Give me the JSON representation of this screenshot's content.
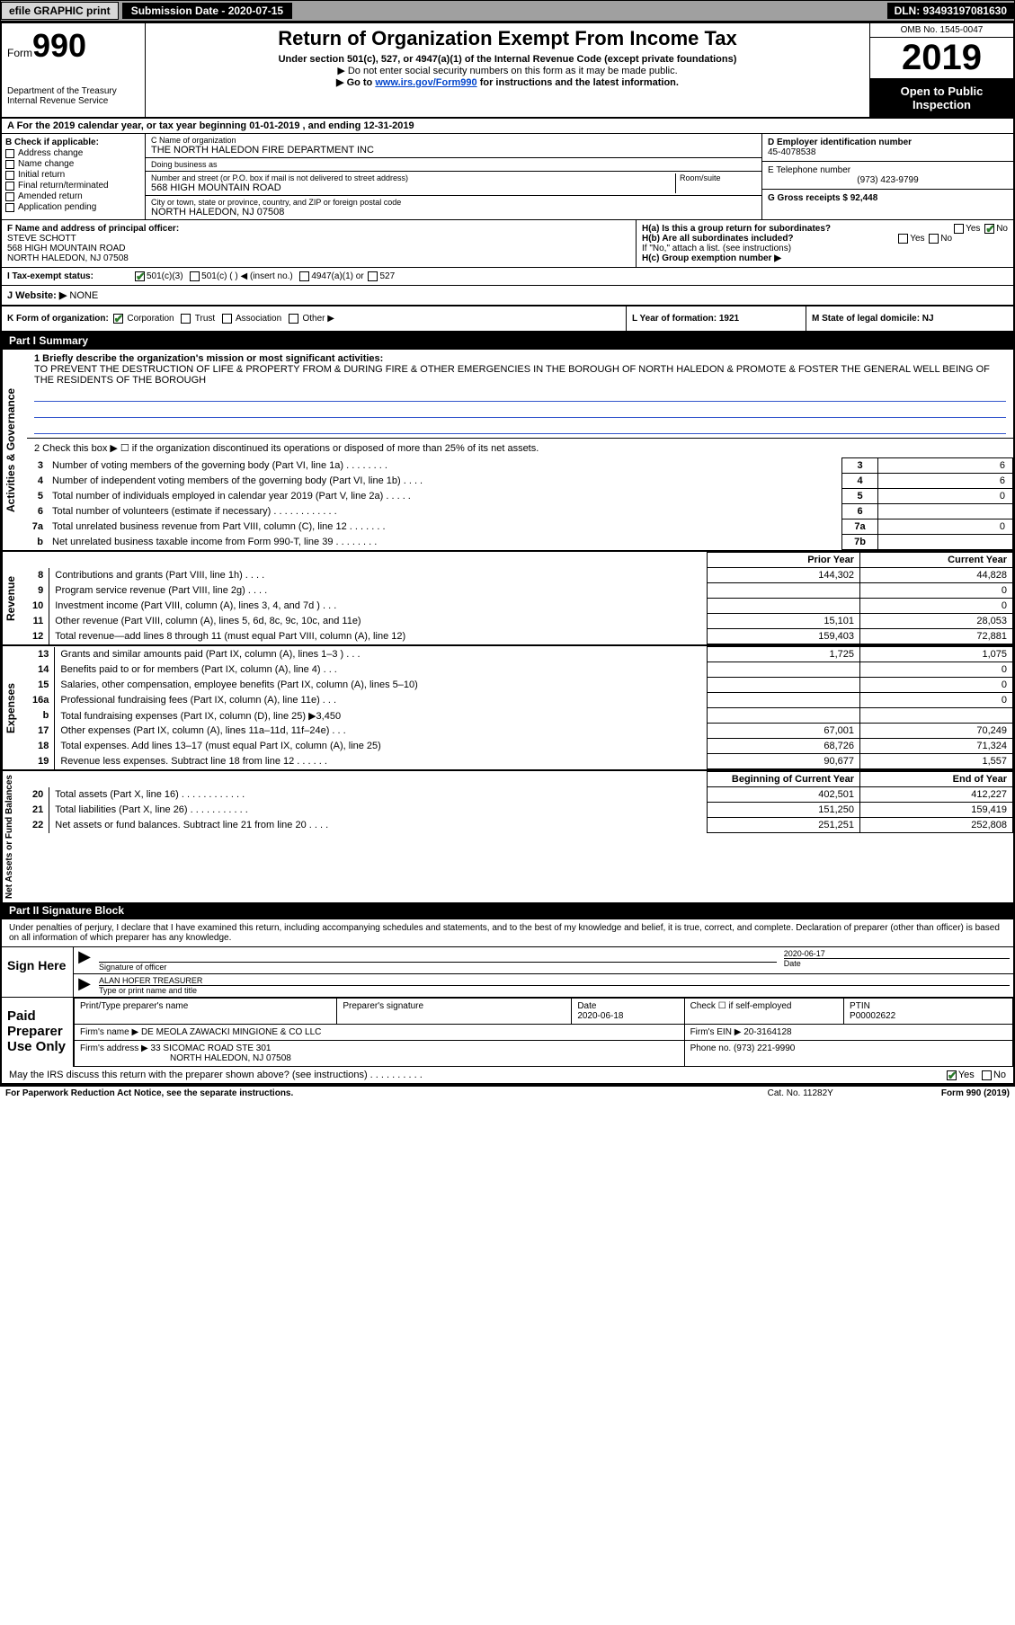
{
  "topbar": {
    "efile": "efile GRAPHIC print",
    "submission_label": "Submission Date - 2020-07-15",
    "dln": "DLN: 93493197081630"
  },
  "header": {
    "form_label": "Form",
    "form_number": "990",
    "dept": "Department of the Treasury\nInternal Revenue Service",
    "title": "Return of Organization Exempt From Income Tax",
    "subtitle": "Under section 501(c), 527, or 4947(a)(1) of the Internal Revenue Code (except private foundations)",
    "note1": "▶ Do not enter social security numbers on this form as it may be made public.",
    "note2_pre": "▶ Go to ",
    "note2_link": "www.irs.gov/Form990",
    "note2_post": " for instructions and the latest information.",
    "omb": "OMB No. 1545-0047",
    "year": "2019",
    "open": "Open to Public Inspection"
  },
  "row_a": "A For the 2019 calendar year, or tax year beginning 01-01-2019   , and ending 12-31-2019",
  "col_b": {
    "label": "B Check if applicable:",
    "items": [
      "Address change",
      "Name change",
      "Initial return",
      "Final return/terminated",
      "Amended return",
      "Application pending"
    ]
  },
  "col_c": {
    "name_label": "C Name of organization",
    "name": "THE NORTH HALEDON FIRE DEPARTMENT INC",
    "dba_label": "Doing business as",
    "dba": "",
    "addr_label": "Number and street (or P.O. box if mail is not delivered to street address)",
    "room_label": "Room/suite",
    "addr": "568 HIGH MOUNTAIN ROAD",
    "city_label": "City or town, state or province, country, and ZIP or foreign postal code",
    "city": "NORTH HALEDON, NJ  07508"
  },
  "col_d": {
    "ein_label": "D Employer identification number",
    "ein": "45-4078538",
    "phone_label": "E Telephone number",
    "phone": "(973) 423-9799",
    "gross_label": "G Gross receipts $ 92,448"
  },
  "row_f": {
    "label": "F  Name and address of principal officer:",
    "name": "STEVE SCHOTT",
    "addr1": "568 HIGH MOUNTAIN ROAD",
    "addr2": "NORTH HALEDON, NJ  07508"
  },
  "row_h": {
    "ha": "H(a)  Is this a group return for subordinates?",
    "hb": "H(b)  Are all subordinates included?",
    "hb_note": "If \"No,\" attach a list. (see instructions)",
    "hc": "H(c)  Group exemption number ▶",
    "yes": "Yes",
    "no": "No"
  },
  "row_i": {
    "label": "I  Tax-exempt status:",
    "opt1": "501(c)(3)",
    "opt2": "501(c) (   ) ◀ (insert no.)",
    "opt3": "4947(a)(1) or",
    "opt4": "527"
  },
  "row_j": {
    "label": "J  Website: ▶",
    "val": "NONE"
  },
  "row_k": {
    "label": "K Form of organization:",
    "opts": [
      "Corporation",
      "Trust",
      "Association",
      "Other ▶"
    ],
    "l_label": "L Year of formation: 1921",
    "m_label": "M State of legal domicile: NJ"
  },
  "part1": {
    "header": "Part I     Summary",
    "vtabs": [
      "Activities & Governance",
      "Revenue",
      "Expenses",
      "Net Assets or Fund Balances"
    ],
    "q1_label": "1  Briefly describe the organization's mission or most significant activities:",
    "q1_text": "TO PREVENT THE DESTRUCTION OF LIFE & PROPERTY FROM & DURING FIRE & OTHER EMERGENCIES IN THE BOROUGH OF NORTH HALEDON & PROMOTE & FOSTER THE GENERAL WELL BEING OF THE RESIDENTS OF THE BOROUGH",
    "q2": "2  Check this box ▶ ☐  if the organization discontinued its operations or disposed of more than 25% of its net assets.",
    "lines_gov": [
      {
        "n": "3",
        "t": "Number of voting members of the governing body (Part VI, line 1a)  .   .   .   .   .   .   .   .",
        "box": "3",
        "v": "6"
      },
      {
        "n": "4",
        "t": "Number of independent voting members of the governing body (Part VI, line 1b)  .   .   .   .",
        "box": "4",
        "v": "6"
      },
      {
        "n": "5",
        "t": "Total number of individuals employed in calendar year 2019 (Part V, line 2a)  .   .   .   .   .",
        "box": "5",
        "v": "0"
      },
      {
        "n": "6",
        "t": "Total number of volunteers (estimate if necessary)   .   .   .   .   .   .   .   .   .   .   .   .",
        "box": "6",
        "v": ""
      },
      {
        "n": "7a",
        "t": "Total unrelated business revenue from Part VIII, column (C), line 12  .   .   .   .   .   .   .",
        "box": "7a",
        "v": "0"
      },
      {
        "n": "b",
        "t": "Net unrelated business taxable income from Form 990-T, line 39   .   .   .   .   .   .   .   .",
        "box": "7b",
        "v": ""
      }
    ],
    "col_py": "Prior Year",
    "col_cy": "Current Year",
    "lines_rev": [
      {
        "n": "8",
        "t": "Contributions and grants (Part VIII, line 1h)   .   .   .   .",
        "py": "144,302",
        "cy": "44,828"
      },
      {
        "n": "9",
        "t": "Program service revenue (Part VIII, line 2g)   .   .   .   .",
        "py": "",
        "cy": "0"
      },
      {
        "n": "10",
        "t": "Investment income (Part VIII, column (A), lines 3, 4, and 7d )   .   .   .",
        "py": "",
        "cy": "0"
      },
      {
        "n": "11",
        "t": "Other revenue (Part VIII, column (A), lines 5, 6d, 8c, 9c, 10c, and 11e)",
        "py": "15,101",
        "cy": "28,053"
      },
      {
        "n": "12",
        "t": "Total revenue—add lines 8 through 11 (must equal Part VIII, column (A), line 12)",
        "py": "159,403",
        "cy": "72,881"
      }
    ],
    "lines_exp": [
      {
        "n": "13",
        "t": "Grants and similar amounts paid (Part IX, column (A), lines 1–3 )  .   .   .",
        "py": "1,725",
        "cy": "1,075"
      },
      {
        "n": "14",
        "t": "Benefits paid to or for members (Part IX, column (A), line 4)  .   .   .",
        "py": "",
        "cy": "0"
      },
      {
        "n": "15",
        "t": "Salaries, other compensation, employee benefits (Part IX, column (A), lines 5–10)",
        "py": "",
        "cy": "0"
      },
      {
        "n": "16a",
        "t": "Professional fundraising fees (Part IX, column (A), line 11e)  .   .   .",
        "py": "",
        "cy": "0"
      },
      {
        "n": "b",
        "t": "Total fundraising expenses (Part IX, column (D), line 25) ▶3,450",
        "py": "GREY",
        "cy": "GREY"
      },
      {
        "n": "17",
        "t": "Other expenses (Part IX, column (A), lines 11a–11d, 11f–24e)  .   .   .",
        "py": "67,001",
        "cy": "70,249"
      },
      {
        "n": "18",
        "t": "Total expenses. Add lines 13–17 (must equal Part IX, column (A), line 25)",
        "py": "68,726",
        "cy": "71,324"
      },
      {
        "n": "19",
        "t": "Revenue less expenses. Subtract line 18 from line 12  .   .   .   .   .   .",
        "py": "90,677",
        "cy": "1,557"
      }
    ],
    "col_by": "Beginning of Current Year",
    "col_ey": "End of Year",
    "lines_net": [
      {
        "n": "20",
        "t": "Total assets (Part X, line 16)  .   .   .   .   .   .   .   .   .   .   .   .",
        "py": "402,501",
        "cy": "412,227"
      },
      {
        "n": "21",
        "t": "Total liabilities (Part X, line 26)  .   .   .   .   .   .   .   .   .   .   .",
        "py": "151,250",
        "cy": "159,419"
      },
      {
        "n": "22",
        "t": "Net assets or fund balances. Subtract line 21 from line 20  .   .   .   .",
        "py": "251,251",
        "cy": "252,808"
      }
    ]
  },
  "part2": {
    "header": "Part II     Signature Block",
    "decl": "Under penalties of perjury, I declare that I have examined this return, including accompanying schedules and statements, and to the best of my knowledge and belief, it is true, correct, and complete. Declaration of preparer (other than officer) is based on all information of which preparer has any knowledge.",
    "sign_here": "Sign Here",
    "sig_officer_label": "Signature of officer",
    "sig_date": "2020-06-17",
    "sig_date_label": "Date",
    "sig_name": "ALAN HOFER  TREASURER",
    "sig_name_label": "Type or print name and title",
    "paid": "Paid Preparer Use Only",
    "prep_name_label": "Print/Type preparer's name",
    "prep_sig_label": "Preparer's signature",
    "prep_date_label": "Date",
    "prep_date": "2020-06-18",
    "prep_check_label": "Check ☐ if self-employed",
    "ptin_label": "PTIN",
    "ptin": "P00002622",
    "firm_name_label": "Firm's name    ▶",
    "firm_name": "DE MEOLA ZAWACKI MINGIONE & CO LLC",
    "firm_ein_label": "Firm's EIN ▶",
    "firm_ein": "20-3164128",
    "firm_addr_label": "Firm's address ▶",
    "firm_addr1": "33 SICOMAC ROAD STE 301",
    "firm_addr2": "NORTH HALEDON, NJ  07508",
    "firm_phone_label": "Phone no.",
    "firm_phone": "(973) 221-9990",
    "discuss": "May the IRS discuss this return with the preparer shown above? (see instructions)   .   .   .   .   .   .   .   .   .   .",
    "discuss_yes": "Yes",
    "discuss_no": "No"
  },
  "footer": {
    "left": "For Paperwork Reduction Act Notice, see the separate instructions.",
    "mid": "Cat. No. 11282Y",
    "right": "Form 990 (2019)"
  }
}
